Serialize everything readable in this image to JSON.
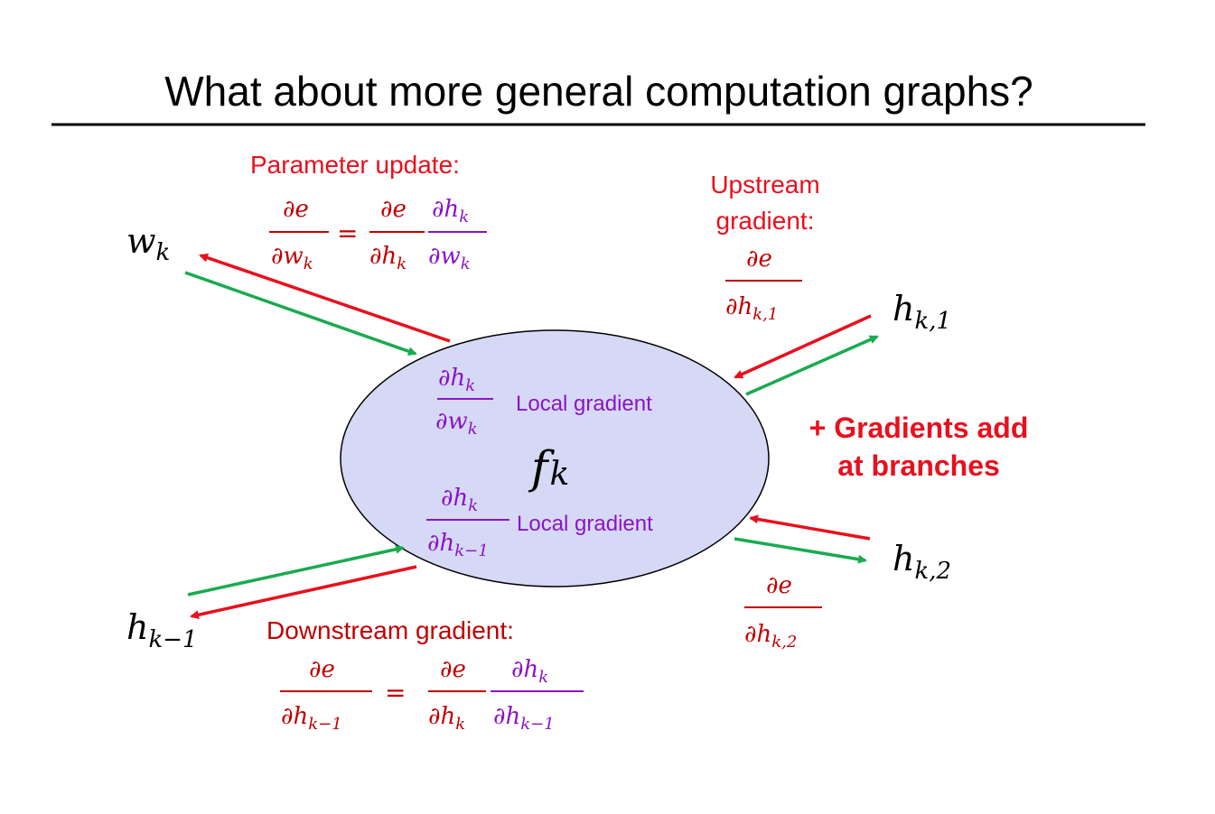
{
  "title": "What about more general computation graphs?",
  "colors": {
    "red": "#e8101e",
    "dark_red": "#c00000",
    "green": "#1aaa4f",
    "purple": "#8a14c8",
    "node_fill": "#d6d9f5",
    "black": "#000000"
  },
  "node": {
    "f_label": "f",
    "f_sub": "k",
    "local_gradient_label": "Local gradient"
  },
  "vars": {
    "w": "w",
    "h": "h",
    "k": "k",
    "k1": "k,1",
    "k2": "k,2",
    "km1": "k−1"
  },
  "frac": {
    "de": "∂e",
    "dhk": "∂h",
    "dwk": "∂w",
    "d": "∂"
  },
  "labels": {
    "parameter_update": "Parameter update:",
    "upstream_line1": "Upstream",
    "upstream_line2": "gradient:",
    "downstream": "Downstream gradient:",
    "branches_line1": "+ Gradients add",
    "branches_line2": "at branches",
    "equals": "="
  }
}
